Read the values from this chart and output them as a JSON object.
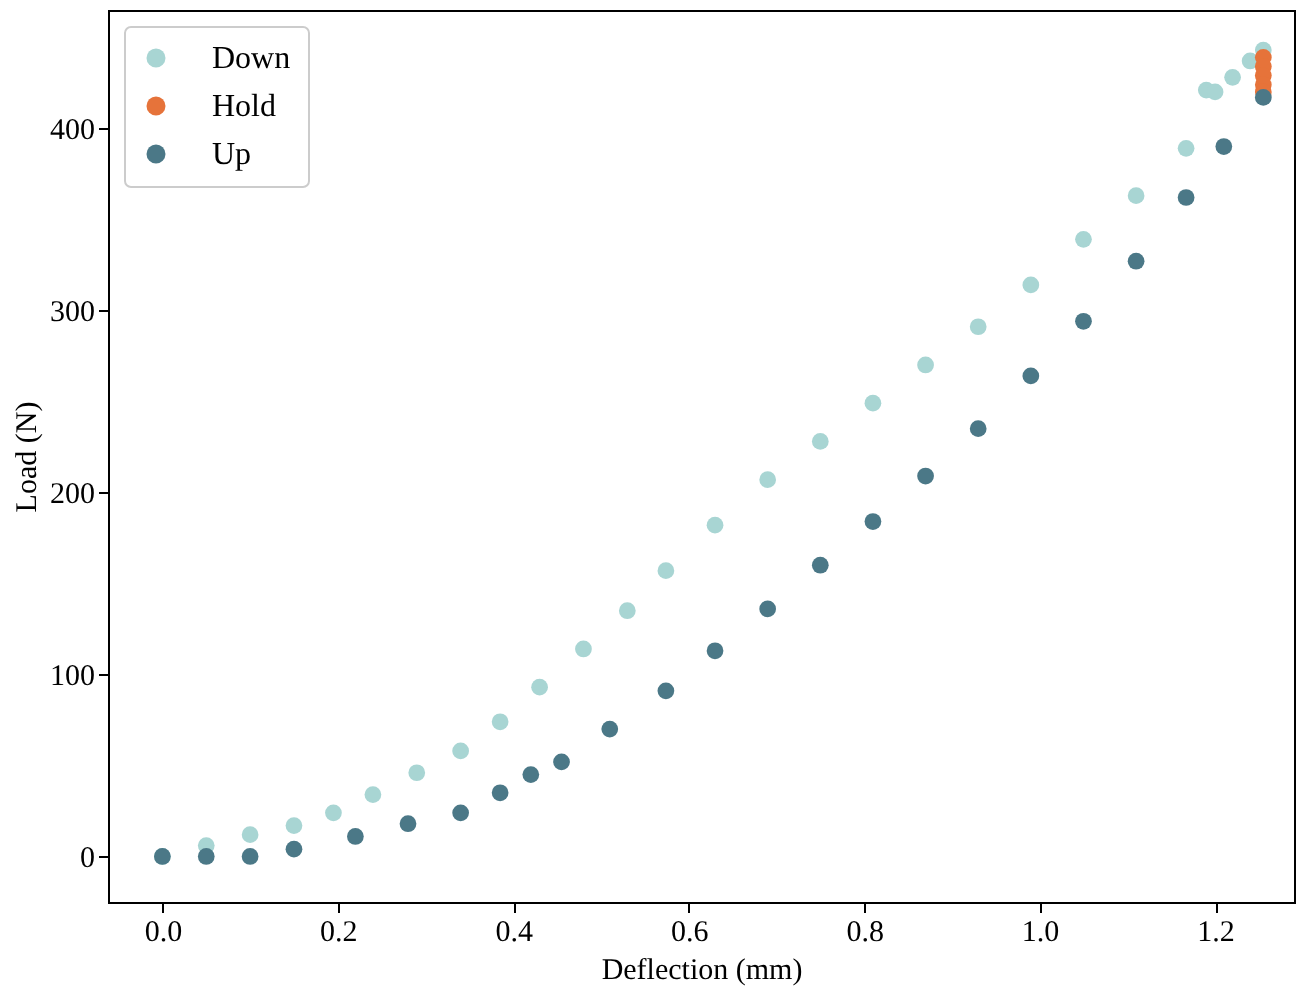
{
  "chart_data": {
    "type": "scatter",
    "xlabel": "Deflection (mm)",
    "ylabel": "Load (N)",
    "xlim": [
      -0.062,
      1.29
    ],
    "ylim": [
      -25,
      465
    ],
    "xticks": [
      {
        "value": 0,
        "label": "0.0"
      },
      0.2,
      0.4,
      0.6,
      0.8,
      {
        "value": 1,
        "label": "1.0"
      },
      1.2
    ],
    "yticks": [
      0,
      100,
      200,
      300,
      400
    ],
    "grid": false,
    "legend": "top left",
    "marker": "circle",
    "series": [
      {
        "name": "Down",
        "color": "#a8d5d3",
        "x": [
          0,
          0.05,
          0.1,
          0.15,
          0.195,
          0.24,
          0.29,
          0.34,
          0.385,
          0.43,
          0.48,
          0.53,
          0.574,
          0.63,
          0.69,
          0.75,
          0.81,
          0.87,
          0.93,
          0.99,
          1.05,
          1.11,
          1.167,
          1.19,
          1.2,
          1.22,
          1.24,
          1.255
        ],
        "values": [
          0,
          6,
          12,
          17,
          24,
          34,
          46,
          58,
          74,
          93,
          114,
          135,
          157,
          182,
          207,
          228,
          249,
          270,
          291,
          314,
          339,
          363,
          389,
          421,
          420,
          428,
          437,
          443
        ]
      },
      {
        "name": "Hold",
        "color": "#e6733a",
        "x": [
          1.255,
          1.255,
          1.255,
          1.255,
          1.255
        ],
        "values": [
          439,
          434,
          429,
          424,
          420
        ]
      },
      {
        "name": "Up",
        "color": "#4b7887",
        "x": [
          0,
          0.05,
          0.1,
          0.15,
          0.22,
          0.28,
          0.34,
          0.385,
          0.42,
          0.455,
          0.51,
          0.574,
          0.63,
          0.69,
          0.75,
          0.81,
          0.87,
          0.93,
          0.99,
          1.05,
          1.11,
          1.167,
          1.21,
          1.255
        ],
        "values": [
          0,
          0,
          0,
          4,
          11,
          18,
          24,
          35,
          45,
          52,
          70,
          91,
          113,
          136,
          160,
          184,
          209,
          235,
          264,
          294,
          327,
          362,
          390,
          417
        ]
      }
    ]
  }
}
